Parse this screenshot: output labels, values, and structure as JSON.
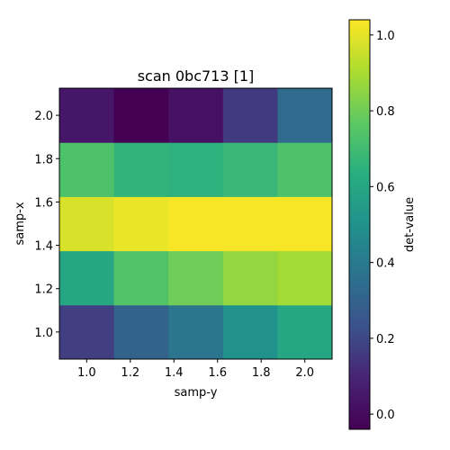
{
  "chart_data": {
    "type": "heatmap",
    "title": "scan 0bc713 [1]",
    "xlabel": "samp-y",
    "ylabel": "samp-x",
    "colorbar_label": "det-value",
    "colormap": "viridis",
    "x": [
      1.0,
      1.25,
      1.5,
      1.75,
      2.0
    ],
    "y": [
      1.0,
      1.25,
      1.5,
      1.75,
      2.0
    ],
    "xlim": [
      0.875,
      2.125
    ],
    "ylim": [
      0.875,
      2.125
    ],
    "xticks": [
      "1.0",
      "1.2",
      "1.4",
      "1.6",
      "1.8",
      "2.0"
    ],
    "yticks": [
      "1.0",
      "1.2",
      "1.4",
      "1.6",
      "1.8",
      "2.0"
    ],
    "clim": [
      -0.04,
      1.04
    ],
    "cbar_ticks": [
      "0.0",
      "0.2",
      "0.4",
      "0.6",
      "0.8",
      "1.0"
    ],
    "values": [
      [
        0.17,
        0.3,
        0.38,
        0.5,
        0.6
      ],
      [
        0.6,
        0.74,
        0.8,
        0.86,
        0.89
      ],
      [
        0.98,
        1.01,
        1.03,
        1.03,
        1.03
      ],
      [
        0.73,
        0.66,
        0.65,
        0.68,
        0.73
      ],
      [
        0.04,
        -0.04,
        0.02,
        0.16,
        0.33
      ]
    ]
  }
}
